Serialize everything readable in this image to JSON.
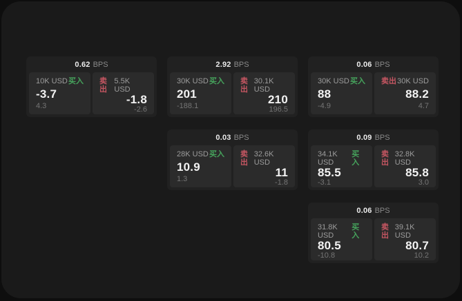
{
  "labels": {
    "bps": "BPS",
    "buy": "买入",
    "sell": "卖出"
  },
  "colors": {
    "buy": "#46a35c",
    "sell": "#c55662",
    "panel_bg": "#1a1a1a",
    "card_bg": "#212121",
    "tile_bg": "#2b2b2b"
  },
  "cards": [
    {
      "bps": "0.62",
      "buy": {
        "amount": "10K USD",
        "price": "-3.7",
        "delta": "4.3"
      },
      "sell": {
        "amount": "5.5K USD",
        "price": "-1.8",
        "delta": "-2.6"
      }
    },
    {
      "bps": "2.92",
      "buy": {
        "amount": "30K USD",
        "price": "201",
        "delta": "-188.1"
      },
      "sell": {
        "amount": "30.1K USD",
        "price": "210",
        "delta": "196.5"
      }
    },
    {
      "bps": "0.06",
      "buy": {
        "amount": "30K USD",
        "price": "88",
        "delta": "-4.9"
      },
      "sell": {
        "amount": "30K USD",
        "price": "88.2",
        "delta": "4.7"
      }
    },
    {
      "bps": "0.03",
      "buy": {
        "amount": "28K USD",
        "price": "10.9",
        "delta": "1.3"
      },
      "sell": {
        "amount": "32.6K USD",
        "price": "11",
        "delta": "-1.8"
      }
    },
    {
      "bps": "0.09",
      "buy": {
        "amount": "34.1K USD",
        "price": "85.5",
        "delta": "-3.1"
      },
      "sell": {
        "amount": "32.8K USD",
        "price": "85.8",
        "delta": "3.0"
      }
    },
    {
      "bps": "0.06",
      "buy": {
        "amount": "31.8K USD",
        "price": "80.5",
        "delta": "-10.8"
      },
      "sell": {
        "amount": "39.1K USD",
        "price": "80.7",
        "delta": "10.2"
      }
    }
  ]
}
